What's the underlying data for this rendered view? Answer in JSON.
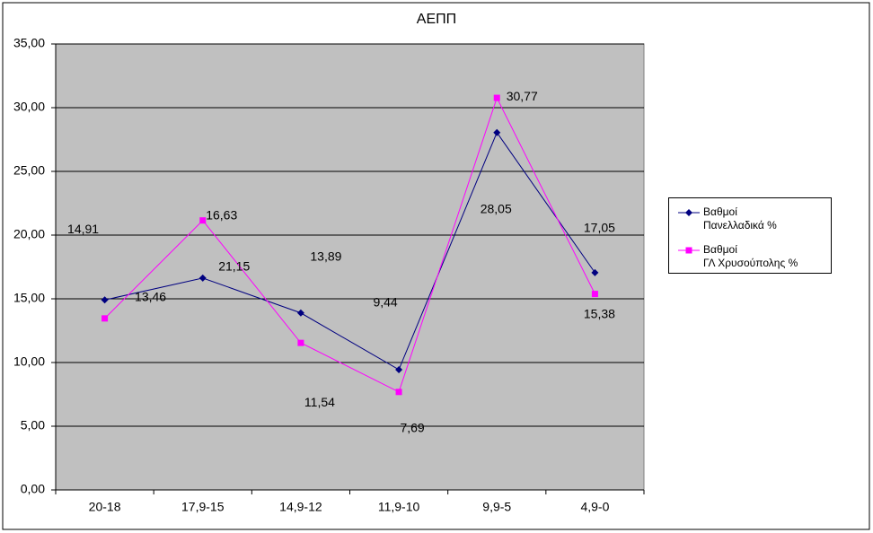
{
  "chart_data": {
    "type": "line",
    "title": "ΑΕΠΠ",
    "categories": [
      "20-18",
      "17,9-15",
      "14,9-12",
      "11,9-10",
      "9,9-5",
      "4,9-0"
    ],
    "series": [
      {
        "name": "Βαθμοί\nΠανελλαδικά %",
        "color": "#000080",
        "marker": "diamond",
        "values": [
          14.91,
          16.63,
          13.89,
          9.44,
          28.05,
          17.05
        ],
        "value_labels": [
          "14,91",
          "16,63",
          "13,89",
          "9,44",
          "28,05",
          "17,05"
        ]
      },
      {
        "name": "Βαθμοί\nΓΛ Χρυσούπολης %",
        "color": "#ff00ff",
        "marker": "square",
        "values": [
          13.46,
          21.15,
          11.54,
          7.69,
          30.77,
          15.38
        ],
        "value_labels": [
          "13,46",
          "21,15",
          "11,54",
          "7,69",
          "30,77",
          "15,38"
        ]
      }
    ],
    "ylim": [
      0,
      35
    ],
    "yticks": [
      {
        "value": 0,
        "label": "0,00"
      },
      {
        "value": 5,
        "label": "5,00"
      },
      {
        "value": 10,
        "label": "10,00"
      },
      {
        "value": 15,
        "label": "15,00"
      },
      {
        "value": 20,
        "label": "20,00"
      },
      {
        "value": 25,
        "label": "25,00"
      },
      {
        "value": 30,
        "label": "30,00"
      },
      {
        "value": 35,
        "label": "35,00"
      }
    ],
    "grid": true,
    "legend": "right"
  }
}
